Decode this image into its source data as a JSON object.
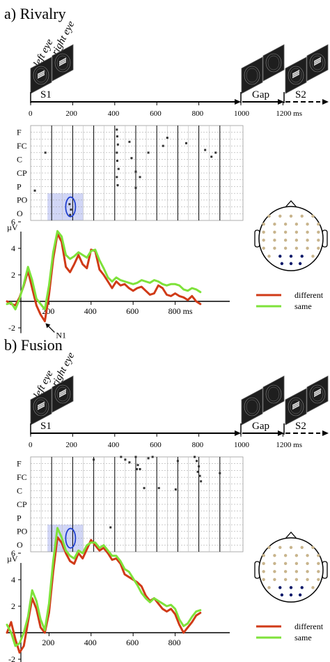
{
  "panels": [
    {
      "id": "rivalry",
      "title": "a) Rivalry",
      "timeline": {
        "eye_labels": [
          "left eye",
          "right eye"
        ],
        "phases": [
          {
            "label": "S1",
            "start": 0,
            "end": 1000
          },
          {
            "label": "Gap",
            "start": 1000,
            "end": 1200
          },
          {
            "label": "S2",
            "start": 1200,
            "end": 1400
          }
        ],
        "ticks": [
          "0",
          "200",
          "400",
          "600",
          "800",
          "1000",
          "1200 ms"
        ]
      },
      "raster": {
        "rows": [
          "F",
          "FC",
          "C",
          "CP",
          "P",
          "PO",
          "O"
        ],
        "highlight": {
          "from_ms": 80,
          "to_ms": 250,
          "rows": [
            "O",
            "PO"
          ]
        },
        "circle_ms": 190,
        "points": [
          {
            "t": 410,
            "r": 0.3
          },
          {
            "t": 412,
            "r": 0.8
          },
          {
            "t": 415,
            "r": 1.4
          },
          {
            "t": 410,
            "r": 2.0
          },
          {
            "t": 412,
            "r": 2.6
          },
          {
            "t": 418,
            "r": 3.2
          },
          {
            "t": 410,
            "r": 3.8
          },
          {
            "t": 414,
            "r": 4.4
          },
          {
            "t": 470,
            "r": 1.2
          },
          {
            "t": 480,
            "r": 2.4
          },
          {
            "t": 500,
            "r": 3.4
          },
          {
            "t": 520,
            "r": 3.8
          },
          {
            "t": 560,
            "r": 2.0
          },
          {
            "t": 630,
            "r": 1.5
          },
          {
            "t": 650,
            "r": 0.9
          },
          {
            "t": 740,
            "r": 1.3
          },
          {
            "t": 830,
            "r": 1.8
          },
          {
            "t": 860,
            "r": 2.3
          },
          {
            "t": 880,
            "r": 2.0
          },
          {
            "t": 20,
            "r": 4.8
          },
          {
            "t": 70,
            "r": 2.0
          },
          {
            "t": 500,
            "r": 4.6
          },
          {
            "t": 185,
            "r": 5.8
          },
          {
            "t": 192,
            "r": 6.2
          },
          {
            "t": 188,
            "r": 6.6
          }
        ]
      },
      "erp": {
        "ylabel": "µV",
        "yticks": [
          "-2",
          "2",
          "4",
          "6"
        ],
        "xticks": [
          "200",
          "400",
          "600",
          "800 ms"
        ],
        "annotation": "N1",
        "series": [
          {
            "name": "different",
            "color": "#d03a17",
            "x": [
              0,
              20,
              40,
              60,
              80,
              100,
              120,
              140,
              160,
              180,
              200,
              220,
              240,
              260,
              280,
              300,
              320,
              340,
              360,
              380,
              400,
              420,
              440,
              460,
              480,
              500,
              520,
              540,
              560,
              580,
              600,
              620,
              640,
              660,
              680,
              700,
              720,
              740,
              760,
              780,
              800,
              820,
              840,
              860,
              880,
              900,
              920
            ],
            "y": [
              0,
              -0.2,
              -0.3,
              0.3,
              1.2,
              2.3,
              1.0,
              -0.3,
              -1.0,
              -1.5,
              0.5,
              3.2,
              5.1,
              4.5,
              2.6,
              2.2,
              2.8,
              3.5,
              2.8,
              2.5,
              3.9,
              3.8,
              2.4,
              2.0,
              1.5,
              1.0,
              1.5,
              1.2,
              1.3,
              1.0,
              0.8,
              1.0,
              1.1,
              0.8,
              0.5,
              0.6,
              1.2,
              1.0,
              0.5,
              0.4,
              0.6,
              0.4,
              0.3,
              0.1,
              0.4,
              0.0,
              -0.2
            ]
          },
          {
            "name": "same",
            "color": "#7ee23a",
            "x": [
              0,
              20,
              40,
              60,
              80,
              100,
              120,
              140,
              160,
              180,
              200,
              220,
              240,
              260,
              280,
              300,
              320,
              340,
              360,
              380,
              400,
              420,
              440,
              460,
              480,
              500,
              520,
              540,
              560,
              580,
              600,
              620,
              640,
              660,
              680,
              700,
              720,
              740,
              760,
              780,
              800,
              820,
              840,
              860,
              880,
              900,
              920
            ],
            "y": [
              -0.2,
              -0.1,
              -0.6,
              0.2,
              1.3,
              2.6,
              1.6,
              0.2,
              -0.2,
              -0.6,
              1.2,
              3.7,
              5.3,
              4.9,
              3.5,
              3.2,
              3.4,
              3.7,
              3.5,
              3.3,
              3.8,
              3.9,
              3.1,
              2.5,
              1.8,
              1.5,
              1.8,
              1.6,
              1.5,
              1.4,
              1.3,
              1.4,
              1.6,
              1.5,
              1.4,
              1.6,
              1.5,
              1.3,
              1.2,
              1.3,
              1.3,
              1.2,
              0.9,
              0.8,
              1.0,
              0.9,
              0.7
            ]
          }
        ]
      },
      "legend": [
        "different",
        "same"
      ]
    },
    {
      "id": "fusion",
      "title": "b) Fusion",
      "timeline": {
        "eye_labels": [
          "left eye",
          "right eye"
        ],
        "phases": [
          {
            "label": "S1",
            "start": 0,
            "end": 1000
          },
          {
            "label": "Gap",
            "start": 1000,
            "end": 1200
          },
          {
            "label": "S2",
            "start": 1200,
            "end": 1400
          }
        ],
        "ticks": [
          "0",
          "200",
          "400",
          "600",
          "800",
          "1000",
          "1200 ms"
        ]
      },
      "raster": {
        "rows": [
          "F",
          "FC",
          "C",
          "CP",
          "P",
          "PO",
          "O"
        ],
        "highlight": {
          "from_ms": 80,
          "to_ms": 250,
          "rows": [
            "O",
            "PO"
          ]
        },
        "circle_ms": 190,
        "points": [
          {
            "t": 430,
            "r": 0.0
          },
          {
            "t": 450,
            "r": 0.2
          },
          {
            "t": 470,
            "r": 0.4
          },
          {
            "t": 500,
            "r": 0.0
          },
          {
            "t": 510,
            "r": 0.6
          },
          {
            "t": 520,
            "r": 0.9
          },
          {
            "t": 560,
            "r": 0.1
          },
          {
            "t": 580,
            "r": 0.0
          },
          {
            "t": 700,
            "r": 0.3
          },
          {
            "t": 780,
            "r": 0.0
          },
          {
            "t": 790,
            "r": 0.3
          },
          {
            "t": 800,
            "r": 0.7
          },
          {
            "t": 795,
            "r": 1.1
          },
          {
            "t": 805,
            "r": 1.4
          },
          {
            "t": 810,
            "r": 1.8
          },
          {
            "t": 900,
            "r": 1.2
          },
          {
            "t": 505,
            "r": 0.9
          },
          {
            "t": 610,
            "r": 2.3
          },
          {
            "t": 690,
            "r": 2.4
          },
          {
            "t": 540,
            "r": 2.3
          },
          {
            "t": 380,
            "r": 5.2
          },
          {
            "t": 300,
            "r": 0.2
          }
        ]
      },
      "erp": {
        "ylabel": "µV",
        "yticks": [
          "-2",
          "2",
          "4",
          "6"
        ],
        "xticks": [
          "200",
          "400",
          "600",
          "800"
        ],
        "annotation": "",
        "series": [
          {
            "name": "different",
            "color": "#d03a17",
            "x": [
              0,
              20,
              40,
              60,
              80,
              100,
              120,
              140,
              160,
              180,
              200,
              220,
              240,
              260,
              280,
              300,
              320,
              340,
              360,
              380,
              400,
              420,
              440,
              460,
              480,
              500,
              520,
              540,
              560,
              580,
              600,
              620,
              640,
              660,
              680,
              700,
              720,
              740,
              760,
              780,
              800,
              820,
              840,
              860,
              880,
              900,
              920
            ],
            "y": [
              0,
              0.8,
              -0.5,
              -1.5,
              -1.0,
              0.8,
              2.6,
              1.8,
              0.4,
              0.0,
              1.5,
              4.6,
              7.2,
              6.8,
              6.0,
              5.4,
              5.2,
              6.0,
              5.6,
              6.3,
              7.0,
              6.6,
              6.2,
              6.4,
              6.0,
              5.5,
              5.6,
              5.2,
              4.4,
              4.2,
              4.0,
              3.8,
              3.5,
              2.8,
              2.4,
              2.6,
              2.2,
              1.8,
              1.6,
              1.8,
              1.4,
              0.6,
              0.0,
              0.4,
              0.8,
              1.3,
              1.5
            ]
          },
          {
            "name": "same",
            "color": "#7ee23a",
            "x": [
              0,
              20,
              40,
              60,
              80,
              100,
              120,
              140,
              160,
              180,
              200,
              220,
              240,
              260,
              280,
              300,
              320,
              340,
              360,
              380,
              400,
              420,
              440,
              460,
              480,
              500,
              520,
              540,
              560,
              580,
              600,
              620,
              640,
              660,
              680,
              700,
              720,
              740,
              760,
              780,
              800,
              820,
              840,
              860,
              880,
              900,
              920
            ],
            "y": [
              0.6,
              0.0,
              -1.0,
              -0.8,
              0.0,
              1.2,
              3.2,
              2.4,
              1.0,
              0.2,
              2.2,
              5.4,
              7.9,
              7.2,
              6.2,
              5.8,
              5.6,
              6.2,
              6.0,
              6.6,
              6.8,
              6.8,
              6.4,
              6.6,
              6.2,
              5.8,
              5.8,
              5.4,
              4.8,
              4.6,
              4.1,
              3.6,
              3.0,
              2.6,
              2.3,
              2.6,
              2.4,
              2.2,
              2.0,
              2.1,
              1.8,
              1.0,
              0.5,
              0.7,
              1.2,
              1.6,
              1.7
            ]
          }
        ]
      },
      "legend": [
        "different",
        "same"
      ]
    }
  ]
}
